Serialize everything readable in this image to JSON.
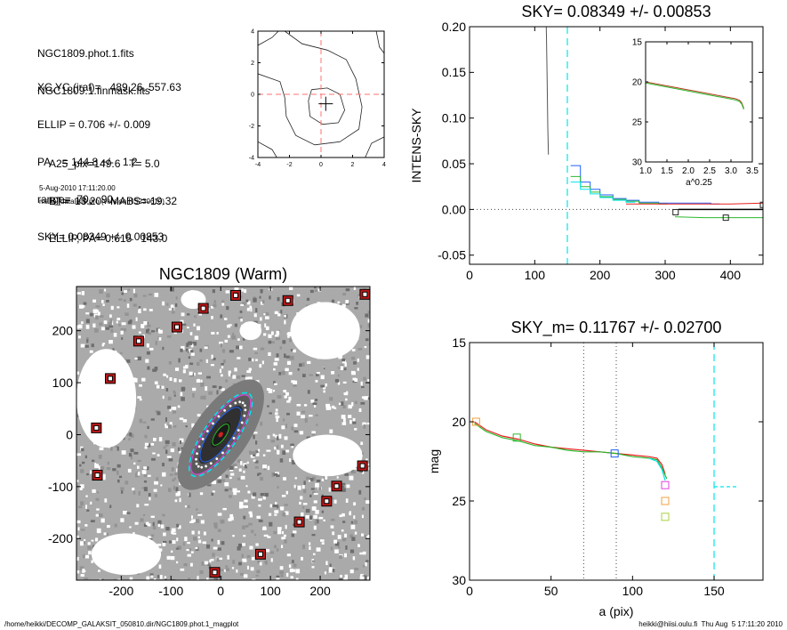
{
  "header_text": {
    "lines_a": [
      "NGC1809.phot.1.fits",
      "NGC1809.1.finmask.fits"
    ],
    "lines_b": [
      "XC,YC (iraf)=   489.26, 557.63",
      "ELLIP = 0.706 +/- 0.009",
      "PA    = 144.8 +/-   1.2",
      "range=  70.-  90.",
      "SKY= 0.08349 +/- 0.00853"
    ],
    "lines_c": [
      "A25_pix=149.6   T= 5.0",
      "BT=  13.20   MABS=-19.32",
      "ELLIP, PA= 0.615   143.0"
    ],
    "date_line": "5-Aug-2010 17:11:20.00",
    "program_line": "make_datalist0.pro (version HS230610)"
  },
  "footer": {
    "left": "/home/heikki/DECOMP_GALAKSIT_050810.dir/NGC1809.phot.1_magplot",
    "right": "heikki@hiisi.oulu.fi  Thu Aug  5 17:11:20 2010"
  },
  "colors": {
    "cyan": "#00e5ee",
    "red": "#e82020",
    "green": "#2db82d",
    "blue": "#2060ff",
    "magenta": "#e040e0",
    "orange": "#f0a040",
    "yellowgreen": "#a8d040",
    "marker_red": "#c01818",
    "galaxy_dark": "#303030",
    "image_gray": "#808080"
  },
  "chart_data": [
    {
      "id": "center_contour",
      "type": "line",
      "title": "",
      "xlim": [
        -4,
        4
      ],
      "ylim": [
        -4,
        4
      ],
      "xticks": [
        -4,
        -2,
        0,
        2,
        4
      ],
      "yticks": [
        -4,
        -2,
        0,
        2,
        4
      ],
      "crosshair_dashed_at": [
        0,
        0
      ],
      "center_marker": [
        0.3,
        -0.6
      ],
      "contours": [
        [
          [
            -2.3,
            4
          ],
          [
            -1.2,
            3.2
          ],
          [
            0.4,
            2.8
          ],
          [
            1.6,
            2.2
          ],
          [
            2.2,
            1.0
          ],
          [
            2.6,
            -0.8
          ],
          [
            2.4,
            -2.2
          ],
          [
            1.2,
            -3.0
          ],
          [
            -0.4,
            -3.2
          ],
          [
            -1.6,
            -2.6
          ],
          [
            -2.2,
            -1.4
          ],
          [
            -2.3,
            -0.2
          ],
          [
            -2.6,
            0.8
          ],
          [
            -4,
            1.3
          ]
        ],
        [
          [
            -0.6,
            0.3
          ],
          [
            0.4,
            0.4
          ],
          [
            1.2,
            0.0
          ],
          [
            1.5,
            -1.0
          ],
          [
            1.1,
            -1.8
          ],
          [
            0.1,
            -1.9
          ],
          [
            -0.7,
            -1.4
          ],
          [
            -0.8,
            -0.4
          ],
          [
            -0.6,
            0.3
          ]
        ],
        [
          [
            -4,
            3.1
          ],
          [
            -3.1,
            3.6
          ],
          [
            -2.7,
            4
          ]
        ],
        [
          [
            3.5,
            4
          ],
          [
            3.7,
            3.0
          ],
          [
            4,
            2.6
          ]
        ],
        [
          [
            2.8,
            -4
          ],
          [
            3.2,
            -3.1
          ],
          [
            4,
            -2.7
          ]
        ],
        [
          [
            -4,
            -3.0
          ],
          [
            -3.1,
            -3.5
          ],
          [
            -2.8,
            -4
          ]
        ]
      ]
    },
    {
      "id": "intens_sky",
      "type": "line",
      "title": "SKY= 0.08349 +/- 0.00853",
      "xlabel": "",
      "ylabel": "INTENS-SKY",
      "xlim": [
        0,
        450
      ],
      "ylim": [
        -0.06,
        0.2
      ],
      "xticks": [
        0,
        100,
        200,
        300,
        400
      ],
      "yticks": [
        -0.05,
        0.0,
        0.05,
        0.1,
        0.15,
        0.2
      ],
      "ytick_labels": [
        "-0.05",
        "0.00",
        "0.05",
        "0.10",
        "0.15",
        "0.20"
      ],
      "zero_line_dotted": 0.0,
      "vline_dashed_x": 150,
      "profile_gray": {
        "x": [
          117,
          118,
          119,
          120,
          121
        ],
        "y": [
          0.22,
          0.19,
          0.14,
          0.09,
          0.06
        ]
      },
      "series": [
        {
          "color_key": "blue",
          "x": [
            155,
            170,
            185,
            200,
            220,
            240,
            260,
            290,
            320,
            370
          ],
          "y": [
            0.048,
            0.03,
            0.022,
            0.016,
            0.012,
            0.01,
            0.008,
            0.007,
            0.007,
            0.006
          ]
        },
        {
          "color_key": "green",
          "x": [
            155,
            170,
            185,
            200,
            220,
            240,
            260,
            290
          ],
          "y": [
            0.036,
            0.025,
            0.019,
            0.014,
            0.011,
            0.009,
            0.007,
            0.006
          ]
        },
        {
          "color_key": "cyan",
          "x": [
            155,
            170,
            185,
            200,
            220,
            240
          ],
          "y": [
            0.03,
            0.022,
            0.017,
            0.013,
            0.01,
            0.008
          ]
        },
        {
          "color_key": "red",
          "x": [
            240,
            290,
            340,
            400,
            450
          ],
          "y": [
            0.006,
            0.006,
            0.006,
            0.006,
            0.007
          ]
        },
        {
          "color_key": "green",
          "x": [
            315,
            360,
            400,
            450
          ],
          "y": [
            -0.008,
            -0.009,
            -0.009,
            -0.009
          ]
        },
        {
          "color_key": "black",
          "x": [
            320,
            450
          ],
          "y": [
            0.0,
            0.0
          ]
        }
      ],
      "square_markers": [
        {
          "x": 316,
          "y": -0.003
        },
        {
          "x": 393,
          "y": -0.009
        },
        {
          "x": 450,
          "y": 0.005
        }
      ],
      "inset": {
        "xlabel": "a^0.25",
        "xlim": [
          1.0,
          3.5
        ],
        "ylim": [
          15,
          30
        ],
        "y_inverted": true,
        "xticks": [
          1.0,
          1.5,
          2.0,
          2.5,
          3.0,
          3.5
        ],
        "xtick_labels": [
          "1.0",
          "1.5",
          "2.0",
          "2.5",
          "3.0",
          "3.5"
        ],
        "yticks": [
          15,
          20,
          25,
          30
        ],
        "profile": {
          "x": [
            1.0,
            1.4,
            1.8,
            2.2,
            2.6,
            2.9,
            3.1,
            3.2,
            3.25,
            3.3
          ],
          "y": [
            20.0,
            20.4,
            20.8,
            21.2,
            21.6,
            21.9,
            22.1,
            22.3,
            22.6,
            23.3
          ]
        }
      }
    },
    {
      "id": "galaxy_image",
      "type": "scatter",
      "title": "NGC1809 (Warm)",
      "xlim": [
        -290,
        300
      ],
      "ylim": [
        -280,
        285
      ],
      "xticks": [
        -200,
        -100,
        0,
        100,
        200
      ],
      "yticks": [
        -200,
        -100,
        0,
        100,
        200
      ],
      "galaxy": {
        "cx": 0,
        "cy": 0,
        "pa_deg": 55
      },
      "ellipses": [
        {
          "color_key": "cyan",
          "a": 100,
          "b": 33,
          "dashed": true
        },
        {
          "color_key": "magenta",
          "a": 95,
          "b": 30,
          "dashed": false
        },
        {
          "color_key": "blue",
          "a": 65,
          "b": 22,
          "dashed": false
        },
        {
          "color_key": "green",
          "a": 25,
          "b": 10,
          "dashed": false
        }
      ],
      "masked_stars": [
        {
          "x": 30,
          "y": 268
        },
        {
          "x": 135,
          "y": 258
        },
        {
          "x": 290,
          "y": 270
        },
        {
          "x": -35,
          "y": 243
        },
        {
          "x": -88,
          "y": 207
        },
        {
          "x": -165,
          "y": 180
        },
        {
          "x": -222,
          "y": 108
        },
        {
          "x": -250,
          "y": 13
        },
        {
          "x": -248,
          "y": -78
        },
        {
          "x": 285,
          "y": -60
        },
        {
          "x": 233,
          "y": -99
        },
        {
          "x": 213,
          "y": -128
        },
        {
          "x": 158,
          "y": -168
        },
        {
          "x": 80,
          "y": -230
        },
        {
          "x": -12,
          "y": -265
        }
      ]
    },
    {
      "id": "magnitude_profile",
      "type": "line",
      "title": "SKY_m=  0.11767 +/- 0.02700",
      "xlabel": "a (pix)",
      "ylabel": "mag",
      "xlim": [
        0,
        180
      ],
      "ylim": [
        15,
        30
      ],
      "y_inverted": true,
      "xticks": [
        0,
        50,
        100,
        150
      ],
      "yticks": [
        15,
        20,
        25,
        30
      ],
      "vlines_dotted_x": [
        70,
        90
      ],
      "vline_dashed_x": 150,
      "hline_dashed_segment": {
        "x": [
          150,
          165
        ],
        "y": 24.1
      },
      "series": [
        {
          "color_key": "red",
          "x": [
            3,
            10,
            20,
            30,
            40,
            50,
            60,
            70,
            80,
            90,
            100,
            110,
            115,
            118,
            120
          ],
          "y": [
            20.0,
            20.5,
            20.9,
            21.1,
            21.4,
            21.6,
            21.7,
            21.8,
            21.9,
            22.0,
            22.1,
            22.2,
            22.3,
            22.7,
            23.3
          ]
        },
        {
          "color_key": "green",
          "x": [
            3,
            10,
            20,
            30,
            40,
            50,
            60,
            70,
            80,
            90,
            100,
            110,
            115,
            118,
            121
          ],
          "y": [
            20.1,
            20.6,
            21.0,
            21.2,
            21.5,
            21.6,
            21.8,
            21.9,
            21.9,
            22.0,
            22.2,
            22.3,
            22.4,
            22.9,
            23.6
          ]
        },
        {
          "color_key": "cyan",
          "x": [
            110,
            115,
            118,
            120
          ],
          "y": [
            22.3,
            22.5,
            23.0,
            23.7
          ]
        }
      ],
      "square_markers": [
        {
          "x": 4,
          "y": 20.0,
          "color_key": "orange"
        },
        {
          "x": 29,
          "y": 21.0,
          "color_key": "green"
        },
        {
          "x": 89,
          "y": 22.0,
          "color_key": "blue"
        },
        {
          "x": 120,
          "y": 24.0,
          "color_key": "magenta"
        },
        {
          "x": 120,
          "y": 25.0,
          "color_key": "orange"
        },
        {
          "x": 120,
          "y": 26.0,
          "color_key": "yellowgreen"
        }
      ]
    }
  ]
}
